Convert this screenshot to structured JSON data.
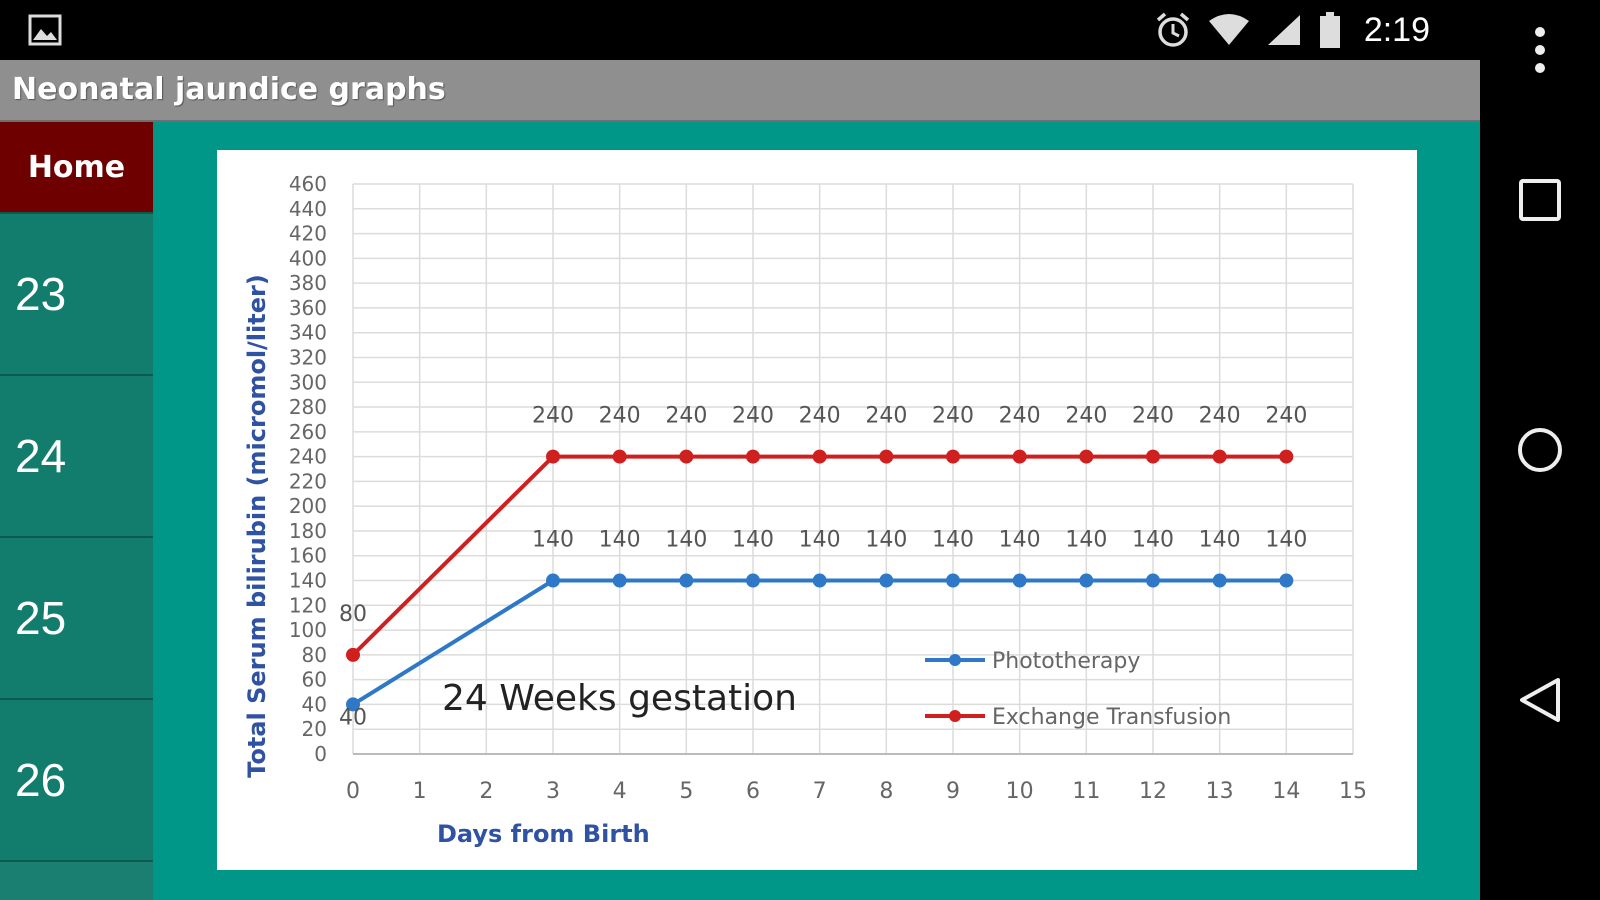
{
  "status_bar": {
    "time": "2:19",
    "icons": [
      "image-icon",
      "alarm-clock-icon",
      "wifi-icon",
      "cell-signal-icon",
      "battery-icon"
    ]
  },
  "action_bar": {
    "title": "Neonatal jaundice graphs"
  },
  "overflow_menu": {
    "icon": "more-vert-icon"
  },
  "sidebar": {
    "items": [
      {
        "label": "Home"
      },
      {
        "label": "23"
      },
      {
        "label": "24"
      },
      {
        "label": "25"
      },
      {
        "label": "26"
      }
    ]
  },
  "nav_bar": {
    "icons": [
      "recents-icon",
      "home-circle-icon",
      "back-triangle-icon"
    ]
  },
  "colors": {
    "app_background": "#009688",
    "home_item": "#6e0000",
    "phototherapy": "#2e78c7",
    "exchange_transfusion": "#d01f1f",
    "axis_title": "#2f52a3"
  },
  "chart_data": {
    "type": "line",
    "annotation": "24 Weeks gestation",
    "xlabel": "Days  from Birth",
    "ylabel": "Total Serum bilirubin  (micromol/liter)",
    "xlim": [
      0,
      15
    ],
    "ylim": [
      0,
      460
    ],
    "x_ticks": [
      0,
      1,
      2,
      3,
      4,
      5,
      6,
      7,
      8,
      9,
      10,
      11,
      12,
      13,
      14,
      15
    ],
    "y_ticks": [
      0,
      20,
      40,
      60,
      80,
      100,
      120,
      140,
      160,
      180,
      200,
      220,
      240,
      260,
      280,
      300,
      320,
      340,
      360,
      380,
      400,
      420,
      440,
      460
    ],
    "grid": true,
    "legend_position": "bottom-right",
    "series": [
      {
        "name": "Phototherapy",
        "color": "#2e78c7",
        "x": [
          0,
          3,
          4,
          5,
          6,
          7,
          8,
          9,
          10,
          11,
          12,
          13,
          14
        ],
        "y": [
          40,
          140,
          140,
          140,
          140,
          140,
          140,
          140,
          140,
          140,
          140,
          140,
          140
        ]
      },
      {
        "name": "Exchange Transfusion",
        "color": "#d01f1f",
        "x": [
          0,
          3,
          4,
          5,
          6,
          7,
          8,
          9,
          10,
          11,
          12,
          13,
          14
        ],
        "y": [
          80,
          240,
          240,
          240,
          240,
          240,
          240,
          240,
          240,
          240,
          240,
          240,
          240
        ]
      }
    ]
  }
}
